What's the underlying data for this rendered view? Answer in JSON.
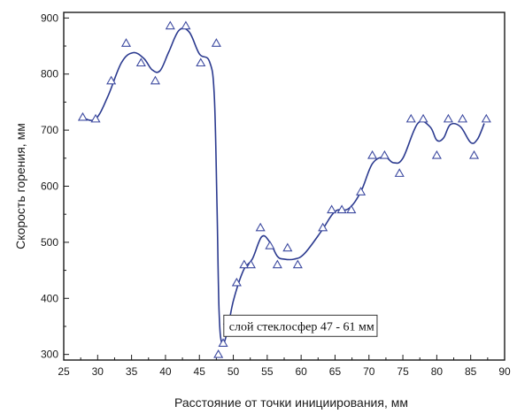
{
  "chart_data": {
    "type": "scatter",
    "xlabel": "Расстояние от точки инициирования, мм",
    "ylabel": "Скорость горения, мм",
    "xlim": [
      25,
      90
    ],
    "ylim": [
      290,
      910
    ],
    "x_ticks": [
      25,
      30,
      35,
      40,
      45,
      50,
      55,
      60,
      65,
      70,
      75,
      80,
      85,
      90
    ],
    "y_ticks": [
      300,
      400,
      500,
      600,
      700,
      800,
      900
    ],
    "grid": false,
    "legend": "none",
    "annotation": "слой стеклосфер 47 - 61 мм",
    "colors": {
      "marker": "#3d4aa0",
      "line": "#2b3a8f",
      "axis": "#1a1a1a"
    },
    "series": [
      {
        "marker": "open-triangle",
        "points": [
          [
            27.8,
            723
          ],
          [
            29.7,
            720
          ],
          [
            32.0,
            788
          ],
          [
            34.2,
            855
          ],
          [
            36.4,
            820
          ],
          [
            38.5,
            788
          ],
          [
            40.7,
            886
          ],
          [
            43.0,
            886
          ],
          [
            45.2,
            820
          ],
          [
            47.5,
            855
          ],
          [
            47.8,
            300
          ],
          [
            48.5,
            320
          ],
          [
            49.2,
            360
          ],
          [
            50.5,
            428
          ],
          [
            51.6,
            460
          ],
          [
            52.6,
            460
          ],
          [
            54.0,
            526
          ],
          [
            55.4,
            494
          ],
          [
            56.5,
            460
          ],
          [
            58.0,
            490
          ],
          [
            59.5,
            460
          ],
          [
            63.2,
            526
          ],
          [
            64.5,
            558
          ],
          [
            66.0,
            558
          ],
          [
            67.4,
            558
          ],
          [
            68.8,
            590
          ],
          [
            70.5,
            655
          ],
          [
            72.3,
            655
          ],
          [
            74.5,
            623
          ],
          [
            76.2,
            720
          ],
          [
            78.0,
            720
          ],
          [
            80.0,
            655
          ],
          [
            81.7,
            720
          ],
          [
            83.8,
            720
          ],
          [
            85.5,
            655
          ],
          [
            87.3,
            720
          ]
        ]
      },
      {
        "style": "smooth-line",
        "points": [
          [
            27.8,
            722
          ],
          [
            29.7,
            720
          ],
          [
            31.5,
            760
          ],
          [
            33.5,
            820
          ],
          [
            35.2,
            838
          ],
          [
            36.8,
            828
          ],
          [
            38.0,
            808
          ],
          [
            39.2,
            806
          ],
          [
            40.5,
            840
          ],
          [
            42.0,
            878
          ],
          [
            43.5,
            875
          ],
          [
            45.0,
            836
          ],
          [
            46.5,
            822
          ],
          [
            47.2,
            760
          ],
          [
            47.6,
            560
          ],
          [
            47.9,
            380
          ],
          [
            48.3,
            320
          ],
          [
            49.0,
            335
          ],
          [
            50.0,
            395
          ],
          [
            51.5,
            450
          ],
          [
            52.8,
            470
          ],
          [
            54.2,
            510
          ],
          [
            55.4,
            500
          ],
          [
            56.5,
            475
          ],
          [
            57.5,
            470
          ],
          [
            59.0,
            470
          ],
          [
            60.5,
            480
          ],
          [
            63.0,
            520
          ],
          [
            65.0,
            555
          ],
          [
            67.0,
            560
          ],
          [
            68.8,
            590
          ],
          [
            70.5,
            640
          ],
          [
            72.3,
            652
          ],
          [
            73.6,
            642
          ],
          [
            75.0,
            650
          ],
          [
            77.2,
            712
          ],
          [
            79.0,
            706
          ],
          [
            80.0,
            682
          ],
          [
            81.0,
            686
          ],
          [
            82.0,
            710
          ],
          [
            83.5,
            706
          ],
          [
            85.0,
            678
          ],
          [
            86.0,
            684
          ],
          [
            87.0,
            712
          ]
        ]
      }
    ]
  }
}
